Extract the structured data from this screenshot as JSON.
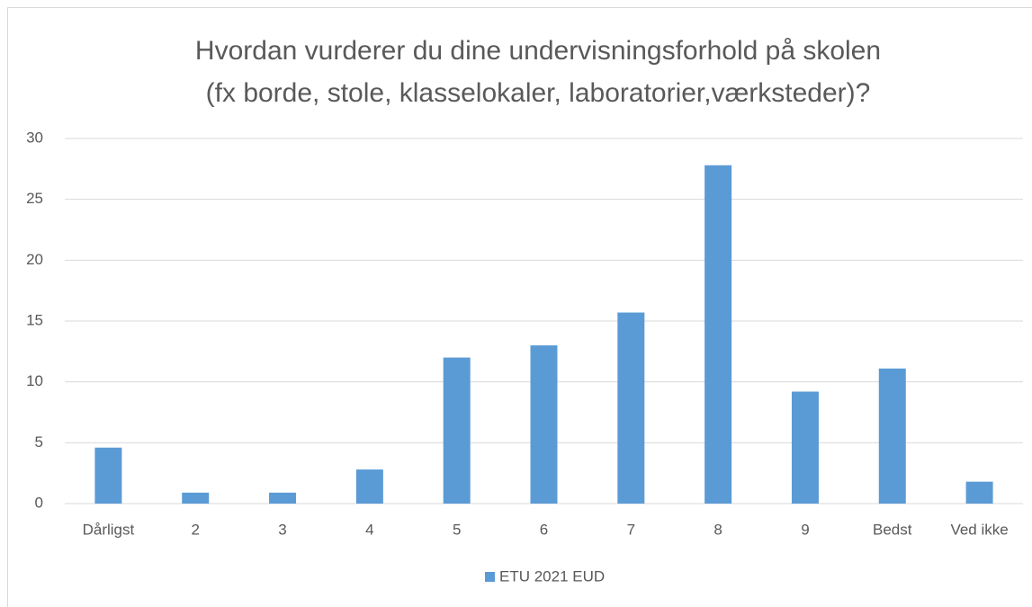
{
  "chart_data": {
    "type": "bar",
    "title": [
      "Hvordan vurderer du dine undervisningsforhold på skolen",
      "(fx borde, stole, klasselokaler, laboratorier,værksteder)?"
    ],
    "categories": [
      "Dårligst",
      "2",
      "3",
      "4",
      "5",
      "6",
      "7",
      "8",
      "9",
      "Bedst",
      "Ved ikke"
    ],
    "series": [
      {
        "name": "ETU 2021 EUD",
        "color": "#5b9bd5",
        "values": [
          4.6,
          0.9,
          0.9,
          2.8,
          12.0,
          13.0,
          15.7,
          27.8,
          9.2,
          11.1,
          1.8
        ]
      }
    ],
    "ylim": [
      0,
      30
    ],
    "yticks": [
      0,
      5,
      10,
      15,
      20,
      25,
      30
    ],
    "grid": true,
    "legend": "bottom"
  }
}
